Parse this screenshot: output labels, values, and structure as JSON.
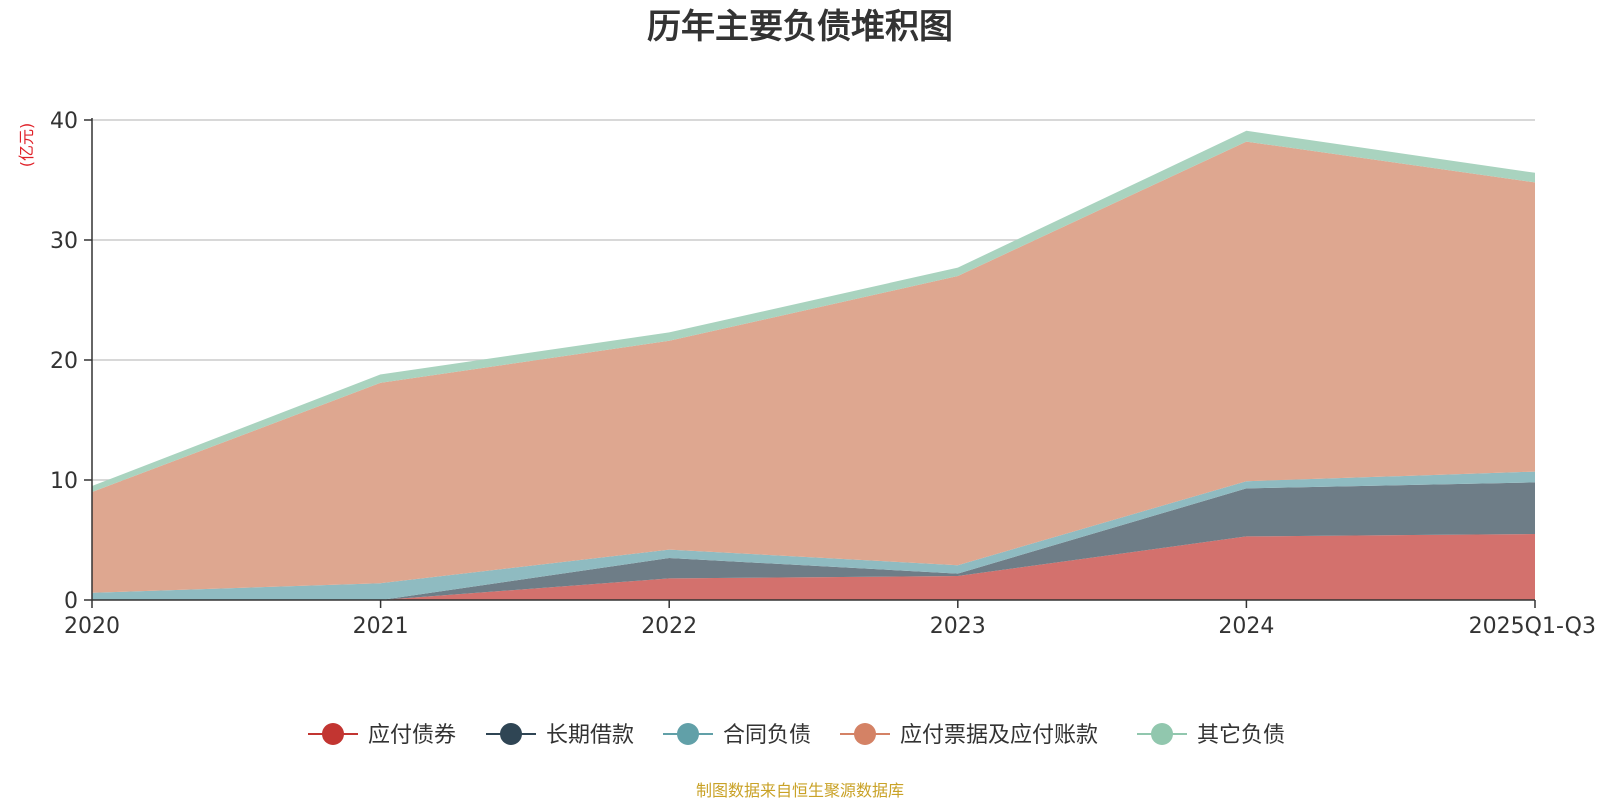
{
  "chart_data": {
    "type": "area",
    "stacked": true,
    "title": "历年主要负债堆积图",
    "ylabel": "(亿元)",
    "xlabel": "",
    "categories": [
      "2020",
      "2021",
      "2022",
      "2023",
      "2024",
      "2025Q1-Q3"
    ],
    "ylim": [
      0,
      40
    ],
    "yticks": [
      0,
      10,
      20,
      30,
      40
    ],
    "grid": true,
    "legend_position": "bottom",
    "series": [
      {
        "name": "应付债券",
        "values": [
          0.0,
          0.0,
          1.8,
          2.0,
          5.3,
          5.5
        ]
      },
      {
        "name": "长期借款",
        "values": [
          0.0,
          0.0,
          1.7,
          0.2,
          4.0,
          4.3
        ]
      },
      {
        "name": "合同负债",
        "values": [
          0.6,
          1.4,
          0.7,
          0.7,
          0.6,
          0.9
        ]
      },
      {
        "name": "应付票据及应付账款",
        "values": [
          8.4,
          16.7,
          17.4,
          24.1,
          28.3,
          24.1
        ]
      },
      {
        "name": "其它负债",
        "values": [
          0.5,
          0.7,
          0.7,
          0.7,
          0.9,
          0.8
        ]
      }
    ],
    "source": "制图数据来自恒生聚源数据库"
  },
  "colors": {
    "fills": [
      "#d3716d",
      "#6e7d87",
      "#8fbbc1",
      "#dea790",
      "#a9d3bf"
    ],
    "markers": [
      "#c23531",
      "#2f4554",
      "#61a0a8",
      "#d48265",
      "#91c7ae"
    ],
    "title": "#333333",
    "ylabel": "#e0222a",
    "source": "#c9a227",
    "axis": "#333333",
    "grid": "#cccccc"
  }
}
